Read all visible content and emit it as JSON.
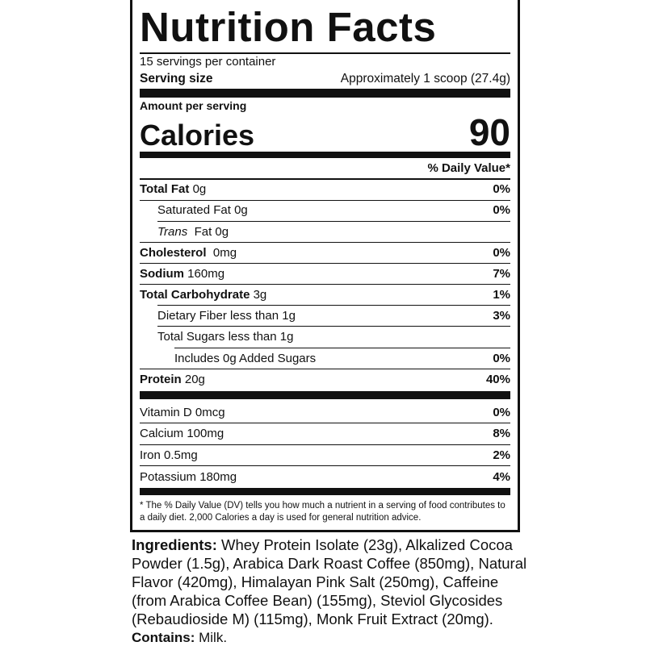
{
  "title": "Nutrition Facts",
  "servings_per_container": "15 servings per container",
  "serving_size": {
    "label": "Serving size",
    "value": "Approximately 1 scoop (27.4g)"
  },
  "amount_per_serving": "Amount per serving",
  "calories": {
    "label": "Calories",
    "value": "90"
  },
  "dv_header": "% Daily Value*",
  "nutrients": [
    {
      "name": "Total Fat",
      "amount": "0g",
      "dv": "0%"
    },
    {
      "name": "Saturated Fat",
      "amount": "0g",
      "dv": "0%"
    },
    {
      "name": "Trans",
      "amount": "Fat 0g",
      "dv": ""
    },
    {
      "name": "Cholesterol",
      "amount": "0mg",
      "dv": "0%"
    },
    {
      "name": "Sodium",
      "amount": "160mg",
      "dv": "7%"
    },
    {
      "name": "Total Carbohydrate",
      "amount": "3g",
      "dv": "1%"
    },
    {
      "name": "Dietary Fiber",
      "amount": "less than 1g",
      "dv": "3%"
    },
    {
      "name": "Total Sugars",
      "amount": "less than 1g",
      "dv": ""
    },
    {
      "name": "Includes 0g Added Sugars",
      "amount": "",
      "dv": "0%"
    },
    {
      "name": "Protein",
      "amount": "20g",
      "dv": "40%"
    }
  ],
  "vitamins": [
    {
      "name": "Vitamin D 0mcg",
      "dv": "0%"
    },
    {
      "name": "Calcium 100mg",
      "dv": "8%"
    },
    {
      "name": "Iron 0.5mg",
      "dv": "2%"
    },
    {
      "name": "Potassium 180mg",
      "dv": "4%"
    }
  ],
  "footnote": "* The % Daily Value (DV) tells you how much a nutrient in a serving of food contributes to a daily diet. 2,000 Calories a day is used for general nutrition advice.",
  "ingredients": {
    "label": "Ingredients:",
    "text": " Whey Protein Isolate (23g), Alkalized Cocoa Powder (1.5g), Arabica Dark Roast Coffee (850mg), Natural Flavor (420mg), Himalayan Pink Salt (250mg), Caffeine (from Arabica Coffee Bean) (155mg), Steviol Glycosides (Rebaudioside M) (115mg), Monk Fruit Extract (20mg)."
  },
  "contains": {
    "label": "Contains:",
    "text": " Milk."
  }
}
